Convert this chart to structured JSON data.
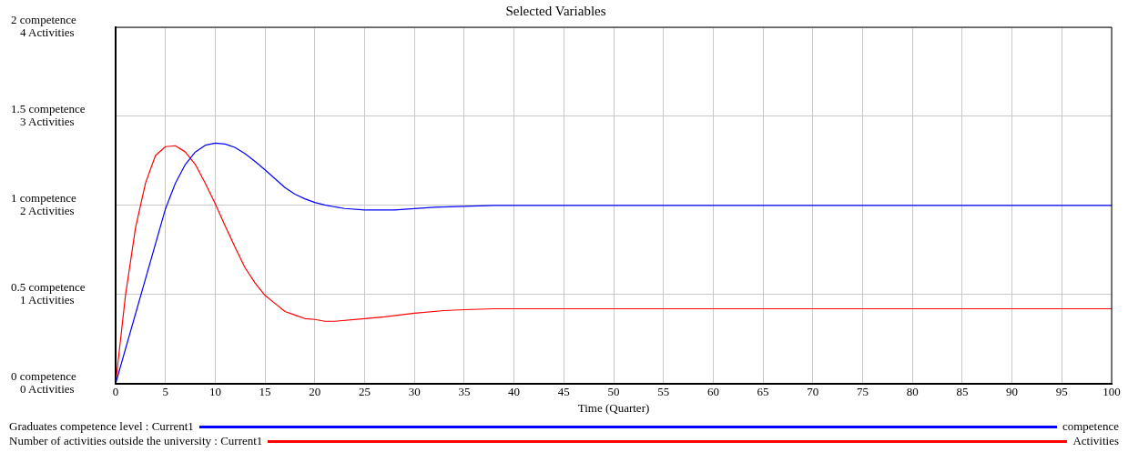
{
  "chart_data": {
    "type": "line",
    "title": "Selected Variables",
    "xlabel": "Time (Quarter)",
    "annotations": [
      "competence",
      "Activities"
    ],
    "xlim": [
      0,
      100
    ],
    "xticks": [
      0,
      5,
      10,
      15,
      20,
      25,
      30,
      35,
      40,
      45,
      50,
      55,
      60,
      65,
      70,
      75,
      80,
      85,
      90,
      95,
      100
    ],
    "ylim": [
      0,
      2
    ],
    "yticks": [
      {
        "value": 0,
        "label": "0 competence"
      },
      {
        "value": 0.5,
        "label": "0.5 competence"
      },
      {
        "value": 1,
        "label": "1 competence"
      },
      {
        "value": 1.5,
        "label": "1.5 competence"
      },
      {
        "value": 2,
        "label": "2 competence"
      }
    ],
    "y2lim": [
      0,
      4
    ],
    "y2ticks": [
      {
        "value": 0,
        "label": "0 Activities"
      },
      {
        "value": 1,
        "label": "1 Activities"
      },
      {
        "value": 2,
        "label": "2 Activities"
      },
      {
        "value": 3,
        "label": "3 Activities"
      },
      {
        "value": 4,
        "label": "4 Activities"
      }
    ],
    "grid": true,
    "legend": "bottom",
    "marker": "none",
    "line_style": "solid",
    "series": [
      {
        "name": "Graduates competence level : Current1",
        "color": "#0000ff",
        "x": [
          0,
          5,
          6,
          7,
          8,
          9,
          10,
          11,
          12,
          13,
          14,
          15,
          16,
          17,
          18,
          19,
          20,
          21,
          22,
          23,
          25,
          28,
          32,
          35,
          38,
          45,
          65,
          70,
          100
        ],
        "values": [
          0,
          0.98,
          1.125,
          1.23,
          1.3,
          1.338,
          1.35,
          1.345,
          1.325,
          1.29,
          1.247,
          1.2,
          1.15,
          1.1,
          1.063,
          1.037,
          1.017,
          1.003,
          0.992,
          0.983,
          0.975,
          0.975,
          0.99,
          0.995,
          1.0,
          1.0,
          1.0,
          1.0,
          1.0
        ]
      },
      {
        "name": "Number of activities outside the university : Current1",
        "color": "#ff0000",
        "axis": "y2",
        "x": [
          0,
          1,
          2,
          3,
          4,
          5,
          6,
          7,
          8,
          9,
          10,
          11,
          12,
          13,
          14,
          15,
          16,
          17,
          18,
          19,
          20,
          21,
          22,
          25,
          27,
          30,
          33,
          35,
          38,
          100
        ],
        "values": [
          0,
          1.0,
          1.75,
          2.25,
          2.56,
          2.66,
          2.67,
          2.6,
          2.46,
          2.25,
          2.02,
          1.77,
          1.53,
          1.3,
          1.13,
          0.99,
          0.9,
          0.81,
          0.77,
          0.73,
          0.72,
          0.7,
          0.7,
          0.73,
          0.75,
          0.79,
          0.82,
          0.83,
          0.84,
          0.84
        ]
      }
    ]
  }
}
